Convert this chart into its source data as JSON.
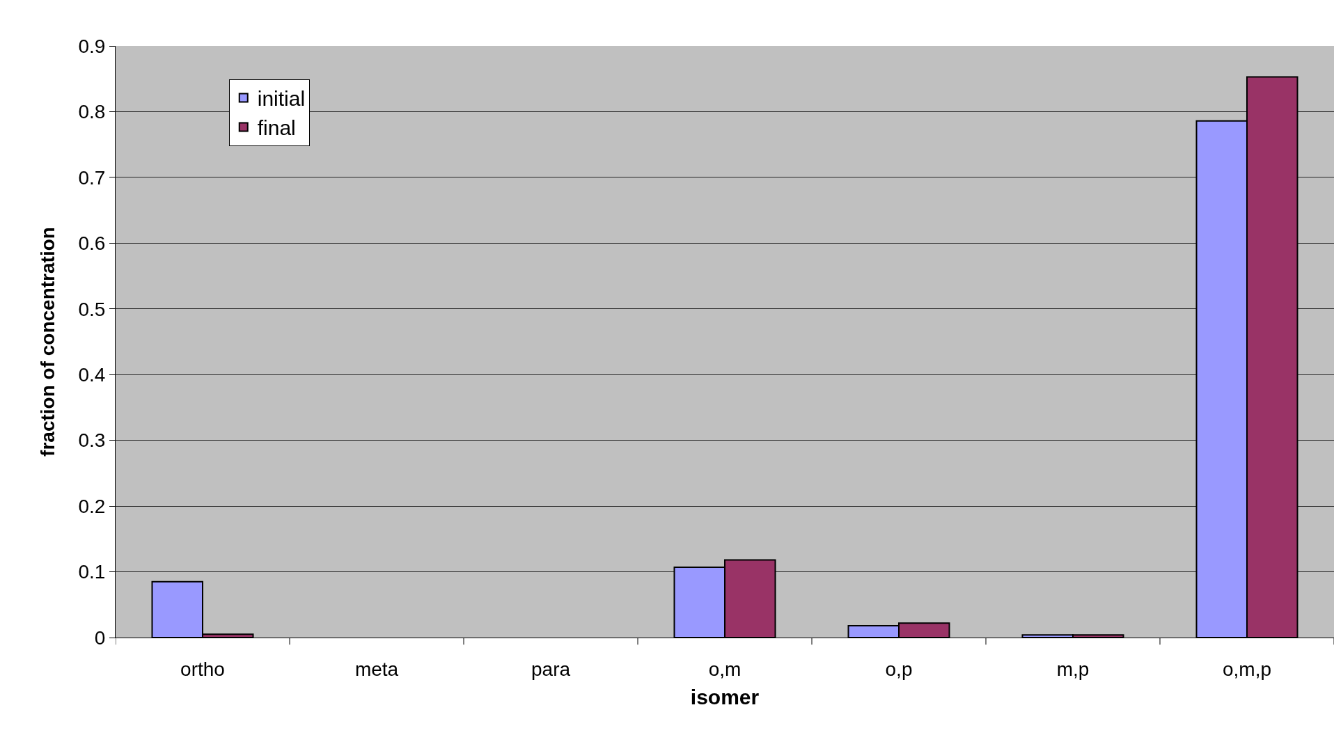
{
  "chart_data": {
    "type": "bar",
    "xlabel": "isomer",
    "ylabel": "fraction of concentration",
    "categories": [
      "ortho",
      "meta",
      "para",
      "o,m",
      "o,p",
      "m,p",
      "o,m,p"
    ],
    "series": [
      {
        "name": "initial",
        "color": "#9999ff",
        "values": [
          0.085,
          null,
          null,
          0.107,
          0.018,
          0.004,
          0.786
        ]
      },
      {
        "name": "final",
        "color": "#993366",
        "values": [
          0.005,
          null,
          null,
          0.118,
          0.022,
          0.004,
          0.853
        ]
      }
    ],
    "ylim": [
      0,
      0.9
    ],
    "yticks": [
      0,
      0.1,
      0.2,
      0.3,
      0.4,
      0.5,
      0.6,
      0.7,
      0.8,
      0.9
    ],
    "grid": "y",
    "legend": "top left"
  }
}
